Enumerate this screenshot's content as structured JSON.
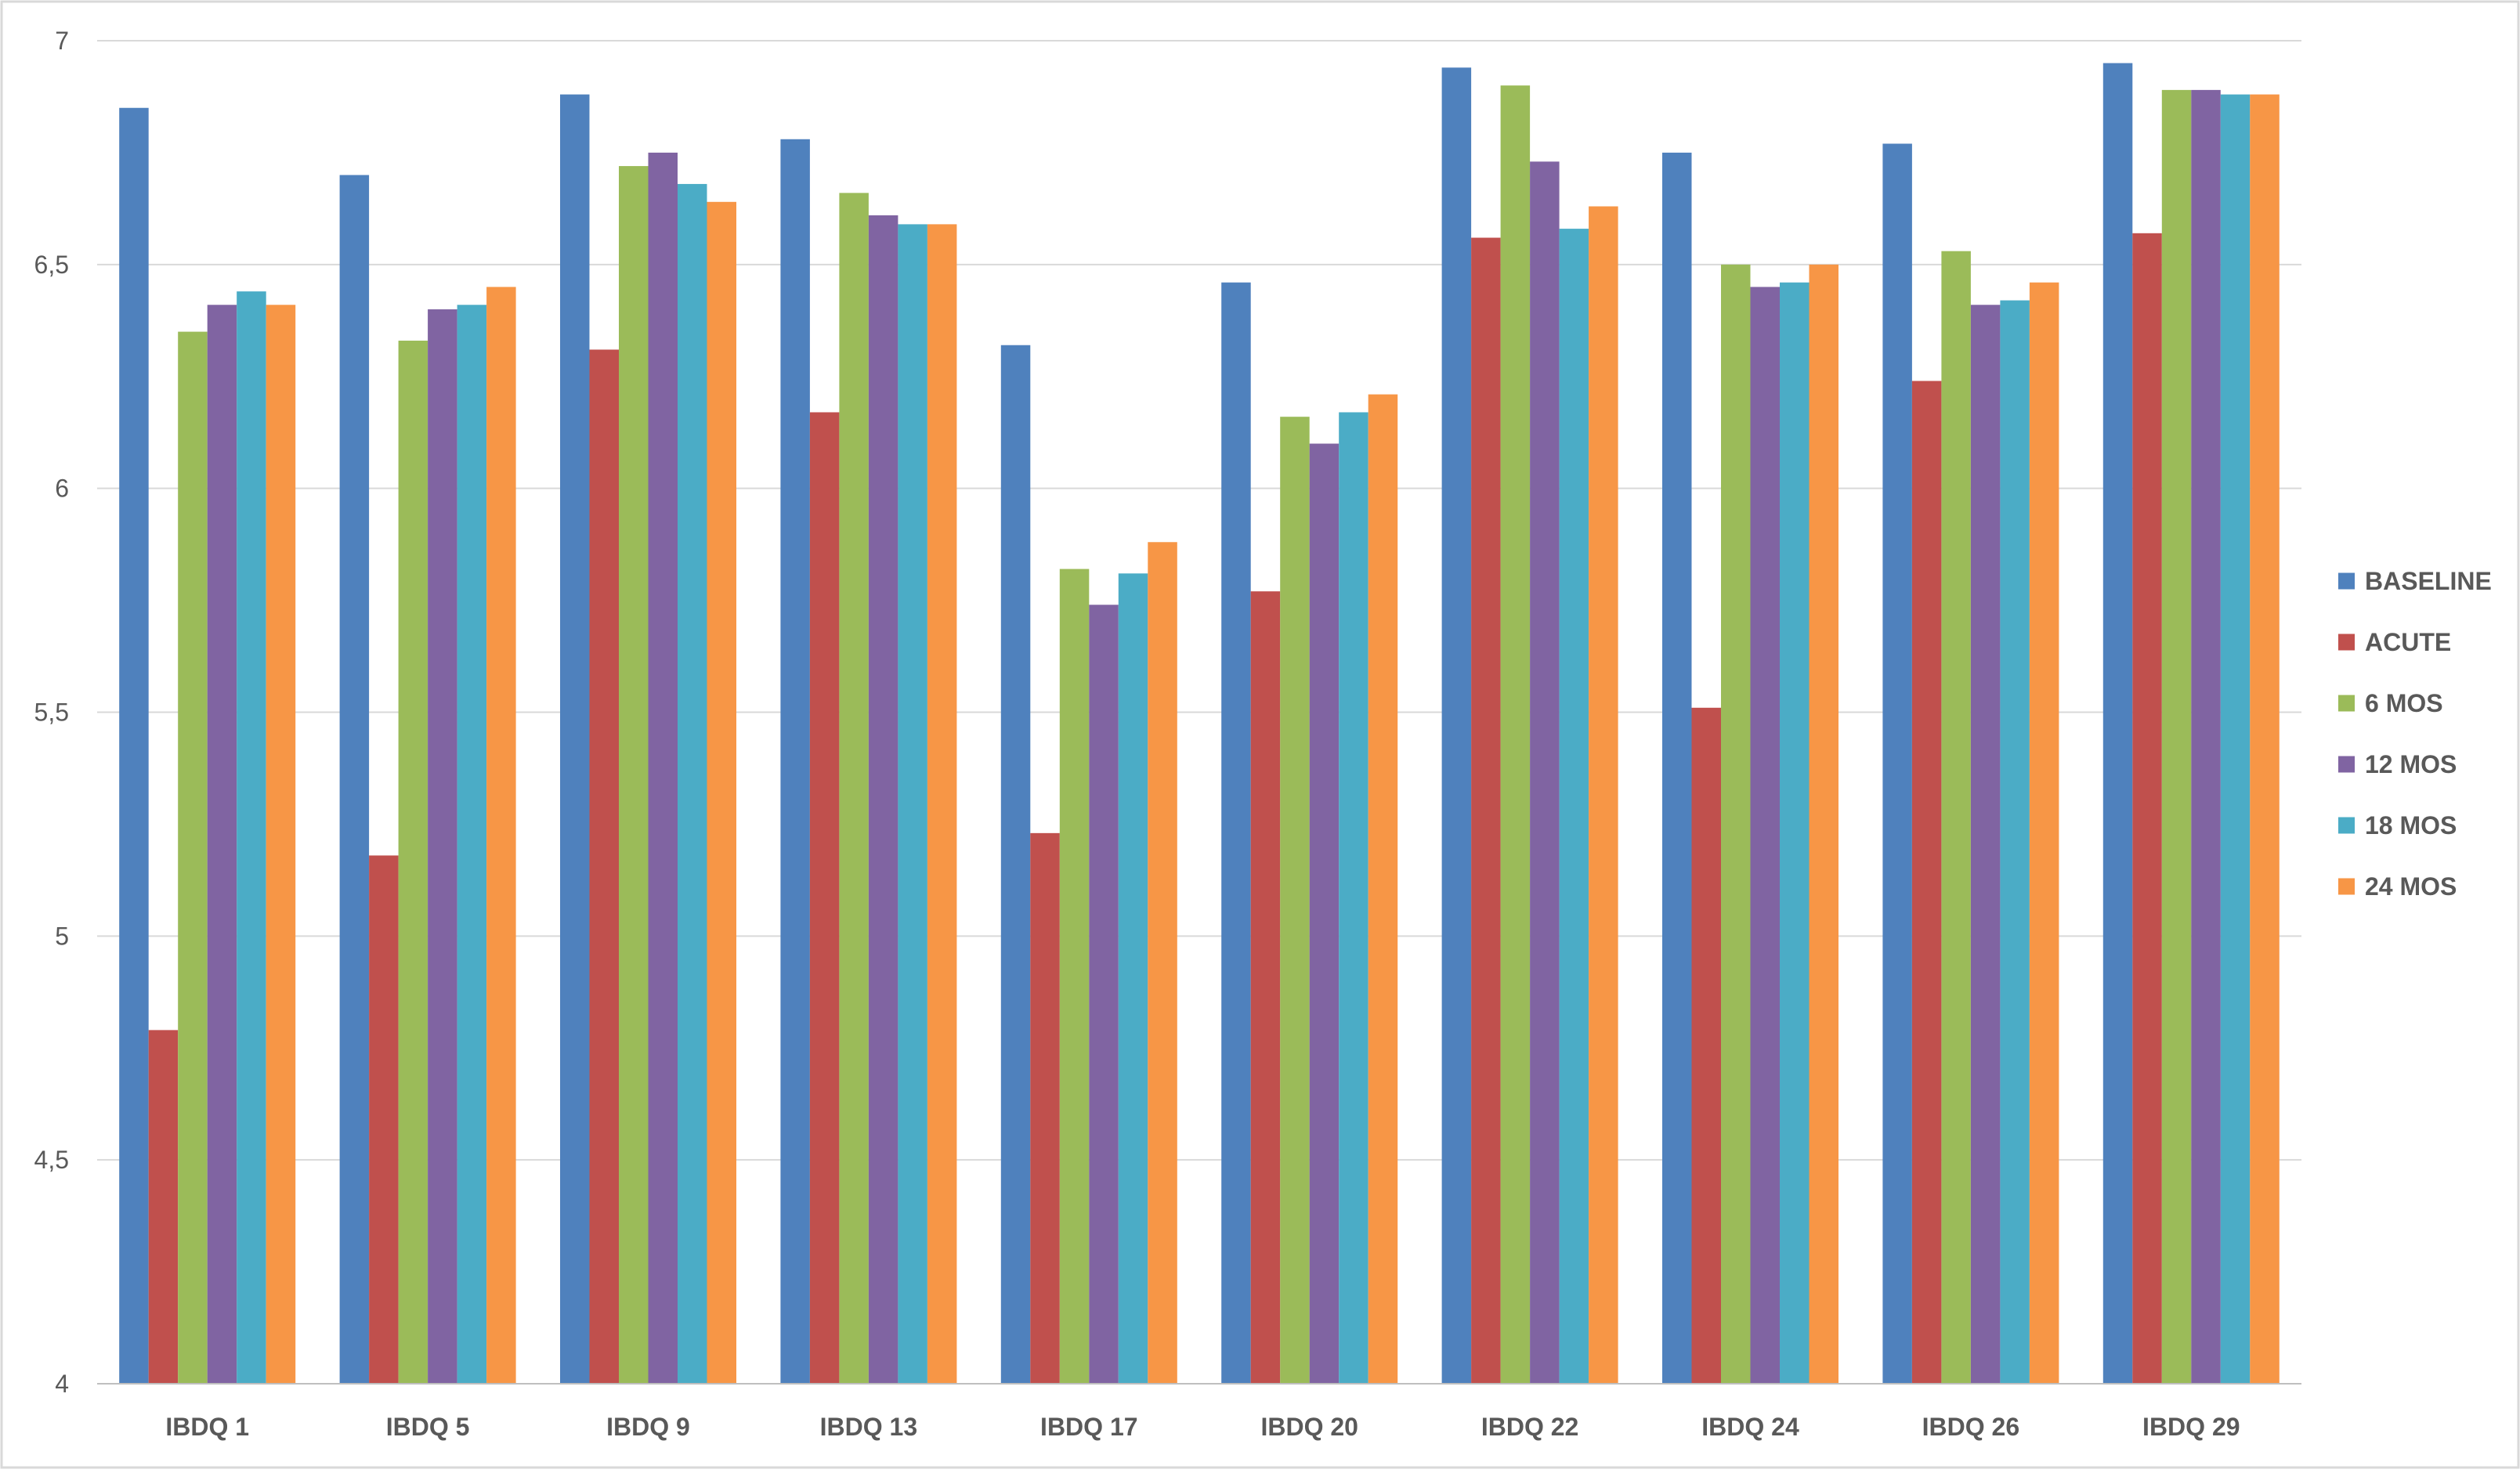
{
  "chart_data": {
    "type": "bar",
    "title": "",
    "xlabel": "",
    "ylabel": "",
    "ylim": [
      4,
      7
    ],
    "yticks": [
      4,
      4.5,
      5,
      5.5,
      6,
      6.5,
      7
    ],
    "ytick_labels": [
      "4",
      "4,5",
      "5",
      "5,5",
      "6",
      "6,5",
      "7"
    ],
    "grid": true,
    "legend_position": "right",
    "categories": [
      "IBDQ 1",
      "IBDQ 5",
      "IBDQ 9",
      "IBDQ 13",
      "IBDQ 17",
      "IBDQ 20",
      "IBDQ 22",
      "IBDQ 24",
      "IBDQ 26",
      "IBDQ 29"
    ],
    "series": [
      {
        "name": "BASELINE",
        "color": "#4f81bd",
        "values": [
          6.85,
          6.7,
          6.88,
          6.78,
          6.32,
          6.46,
          6.94,
          6.75,
          6.77,
          6.95
        ]
      },
      {
        "name": "ACUTE",
        "color": "#c0504d",
        "values": [
          4.79,
          5.18,
          6.31,
          6.17,
          5.23,
          5.77,
          6.56,
          5.51,
          6.24,
          6.57
        ]
      },
      {
        "name": "6 MOS",
        "color": "#9bbb59",
        "values": [
          6.35,
          6.33,
          6.72,
          6.66,
          5.82,
          6.16,
          6.9,
          6.5,
          6.53,
          6.89
        ]
      },
      {
        "name": "12 MOS",
        "color": "#8064a2",
        "values": [
          6.41,
          6.4,
          6.75,
          6.61,
          5.74,
          6.1,
          6.73,
          6.45,
          6.41,
          6.89
        ]
      },
      {
        "name": "18 MOS",
        "color": "#4bacc6",
        "values": [
          6.44,
          6.41,
          6.68,
          6.59,
          5.81,
          6.17,
          6.58,
          6.46,
          6.42,
          6.88
        ]
      },
      {
        "name": "24 MOS",
        "color": "#f79646",
        "values": [
          6.41,
          6.45,
          6.64,
          6.59,
          5.88,
          6.21,
          6.63,
          6.5,
          6.46,
          6.88
        ]
      }
    ]
  }
}
